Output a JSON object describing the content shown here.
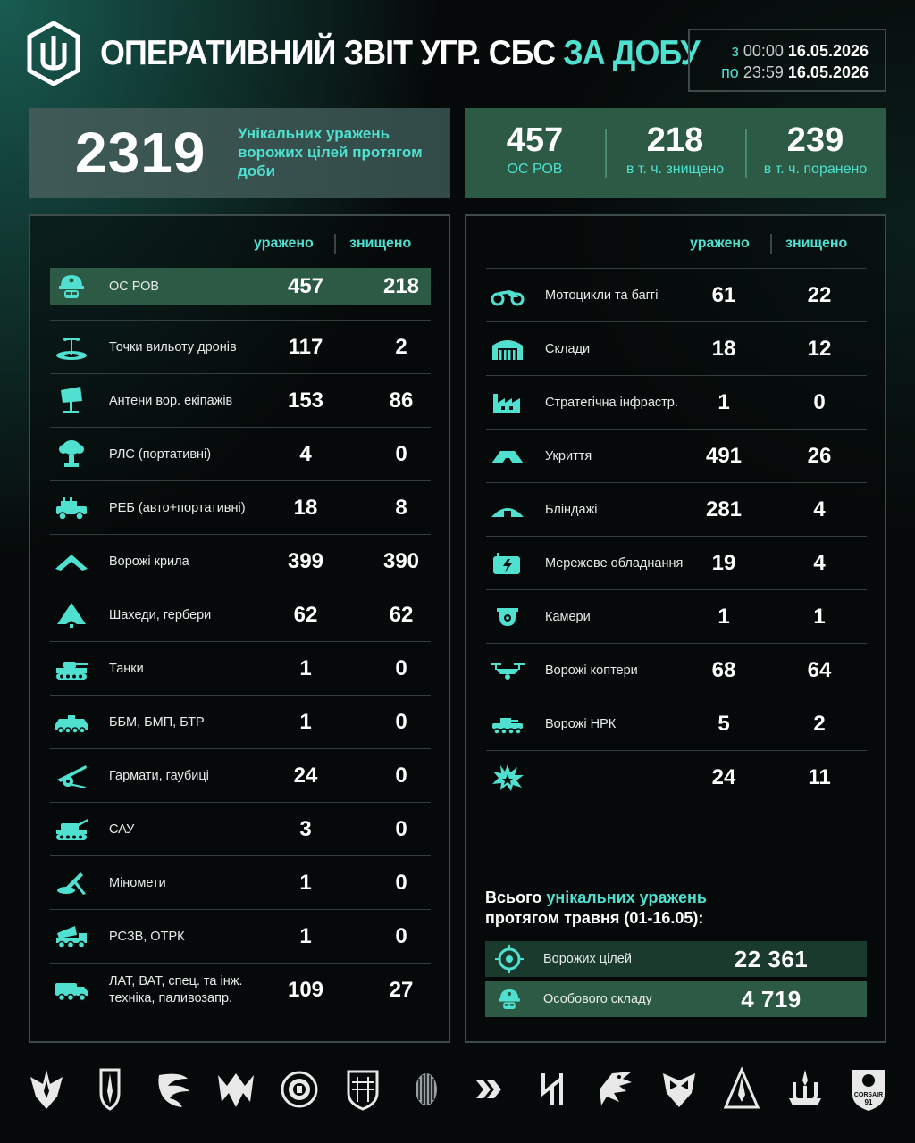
{
  "header": {
    "title_main": "ОПЕРАТИВНИЙ ЗВІТ УГР. СБС",
    "title_accent": "ЗА ДОБУ",
    "period": {
      "from_prefix": "з",
      "from_time": "00:00",
      "from_date": "16.05.2026",
      "to_prefix": "по",
      "to_time": "23:59",
      "to_date": "16.05.2026"
    }
  },
  "summary": {
    "unique_total": "2319",
    "unique_label": "Унікальних уражень ворожих цілей протягом доби",
    "personnel": [
      {
        "value": "457",
        "label": "ОС РОВ"
      },
      {
        "value": "218",
        "label": "в т. ч. знищено"
      },
      {
        "value": "239",
        "label": "в т. ч. поранено"
      }
    ]
  },
  "columns": {
    "hit": "уражено",
    "destroyed": "знищено"
  },
  "left_table": [
    {
      "icon": "soldier-helmet-icon",
      "label": "ОС РОВ",
      "hit": "457",
      "destroyed": "218",
      "highlight": true
    },
    {
      "icon": "drone-launch-point-icon",
      "label": "Точки вильоту дронів",
      "hit": "117",
      "destroyed": "2"
    },
    {
      "icon": "antenna-icon",
      "label": "Антени вор. екіпажів",
      "hit": "153",
      "destroyed": "86"
    },
    {
      "icon": "radar-icon",
      "label": "РЛС (портативні)",
      "hit": "4",
      "destroyed": "0"
    },
    {
      "icon": "ew-vehicle-icon",
      "label": "РЕБ (авто+портативні)",
      "hit": "18",
      "destroyed": "8"
    },
    {
      "icon": "fixed-wing-drone-icon",
      "label": "Ворожі крила",
      "hit": "399",
      "destroyed": "390"
    },
    {
      "icon": "shahed-drone-icon",
      "label": "Шахеди, гербери",
      "hit": "62",
      "destroyed": "62"
    },
    {
      "icon": "tank-icon",
      "label": "Танки",
      "hit": "1",
      "destroyed": "0"
    },
    {
      "icon": "apc-icon",
      "label": "ББМ, БМП, БТР",
      "hit": "1",
      "destroyed": "0"
    },
    {
      "icon": "howitzer-icon",
      "label": "Гармати, гаубиці",
      "hit": "24",
      "destroyed": "0"
    },
    {
      "icon": "self-propelled-gun-icon",
      "label": "САУ",
      "hit": "3",
      "destroyed": "0"
    },
    {
      "icon": "mortar-icon",
      "label": "Міномети",
      "hit": "1",
      "destroyed": "0"
    },
    {
      "icon": "mlrs-icon",
      "label": "РСЗВ, ОТРК",
      "hit": "1",
      "destroyed": "0"
    },
    {
      "icon": "truck-icon",
      "label": "ЛАТ, ВАТ, спец. та інж. техніка, паливозапр.",
      "hit": "109",
      "destroyed": "27"
    }
  ],
  "right_table": [
    {
      "icon": "motorcycle-icon",
      "label": "Мотоцикли та баггі",
      "hit": "61",
      "destroyed": "22"
    },
    {
      "icon": "warehouse-icon",
      "label": "Склади",
      "hit": "18",
      "destroyed": "12"
    },
    {
      "icon": "factory-icon",
      "label": "Стратегічна інфрастр.",
      "hit": "1",
      "destroyed": "0"
    },
    {
      "icon": "shelter-icon",
      "label": "Укриття",
      "hit": "491",
      "destroyed": "26"
    },
    {
      "icon": "dugout-icon",
      "label": "Бліндажі",
      "hit": "281",
      "destroyed": "4"
    },
    {
      "icon": "network-equipment-icon",
      "label": "Мережеве обладнання",
      "hit": "19",
      "destroyed": "4"
    },
    {
      "icon": "camera-icon",
      "label": "Камери",
      "hit": "1",
      "destroyed": "1"
    },
    {
      "icon": "quadcopter-icon",
      "label": "Ворожі коптери",
      "hit": "68",
      "destroyed": "64"
    },
    {
      "icon": "ground-robot-icon",
      "label": "Ворожі НРК",
      "hit": "5",
      "destroyed": "2"
    },
    {
      "icon": "explosion-icon",
      "label": "",
      "hit": "24",
      "destroyed": "11"
    }
  ],
  "monthly": {
    "title_pre": "Всього ",
    "title_accent": "унікальних уражень",
    "title_post": "протягом травня (01-16.05):",
    "rows": [
      {
        "icon": "target-icon",
        "label": "Ворожих цілей",
        "value": "22 361"
      },
      {
        "icon": "soldier-helmet-icon",
        "label": "Особового складу",
        "value": "4 719"
      }
    ]
  },
  "footer_emblems": [
    "trident-wings-emblem-icon",
    "sword-shield-emblem-icon",
    "phoenix-emblem-icon",
    "eagle-m-emblem-icon",
    "round-badge-emblem-icon",
    "shield-lattice-emblem-icon",
    "alien-head-emblem-icon",
    "chevrons-emblem-icon",
    "rune-emblem-icon",
    "eagle-head-emblem-icon",
    "owl-shield-emblem-icon",
    "arrow-triangle-emblem-icon",
    "trident-star-emblem-icon",
    "corsair-emblem-icon"
  ],
  "footer_text": {
    "corsair": "CORSAIR",
    "corsair_num": "91"
  },
  "colors": {
    "accent": "#4fe0d0",
    "highlight_green": "#2d5a44",
    "panel_border": "#3f4b49",
    "background": "#060909"
  }
}
